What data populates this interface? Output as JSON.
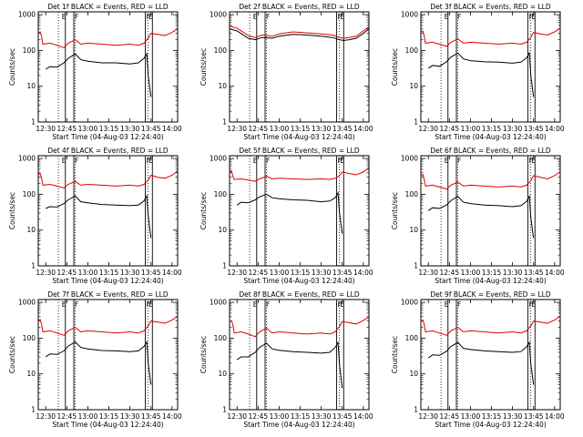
{
  "figure": {
    "panel_title_suffix": "BLACK = Events, RED = LLD",
    "xlabel": "Start Time (04-Aug-03 12:24:40)",
    "ylabel": "Counts/sec",
    "x_ticks": [
      "12:30",
      "12:45",
      "13:00",
      "13:15",
      "13:30",
      "13:45",
      "14:00"
    ],
    "y_ticks": [
      "1",
      "10",
      "100",
      "1000"
    ],
    "markers": [
      "E",
      "F",
      "F",
      "E"
    ],
    "colors": {
      "events": "#000000",
      "lld": "#dd0000"
    }
  },
  "chart_data": [
    {
      "type": "line",
      "title": "Det 1f BLACK = Events, RED = LLD",
      "xlabel": "Start Time (04-Aug-03 12:24:40)",
      "ylabel": "Counts/sec",
      "xlim": [
        "12:24:40",
        "14:04"
      ],
      "ylim": [
        1,
        1200
      ],
      "yscale": "log",
      "series": [
        {
          "name": "Events",
          "x": [
            "12:27",
            "12:30",
            "12:33",
            "12:38",
            "12:43",
            "12:46",
            "12:51",
            "12:55",
            "13:00",
            "13:10",
            "13:20",
            "13:30",
            "13:36",
            "13:40",
            "13:42",
            "13:43",
            "13:45"
          ],
          "values": [
            null,
            30,
            35,
            34,
            45,
            60,
            80,
            55,
            50,
            45,
            45,
            42,
            45,
            60,
            80,
            20,
            5
          ]
        },
        {
          "name": "LLD",
          "x": [
            "12:24:40",
            "12:26",
            "12:27",
            "12:28",
            "12:33",
            "12:38",
            "12:43",
            "12:46",
            "12:51",
            "12:55",
            "13:00",
            "13:10",
            "13:20",
            "13:30",
            "13:36",
            "13:40",
            "13:43",
            "13:45",
            "13:50",
            "13:55",
            "14:00",
            "14:04"
          ],
          "values": [
            300,
            330,
            250,
            150,
            160,
            140,
            120,
            160,
            200,
            150,
            160,
            150,
            140,
            150,
            140,
            160,
            220,
            300,
            280,
            260,
            320,
            400
          ]
        }
      ]
    },
    {
      "type": "line",
      "title": "Det 2f BLACK = Events, RED = LLD",
      "xlabel": "Start Time (04-Aug-03 12:24:40)",
      "ylabel": "Counts/sec",
      "xlim": [
        "12:24:40",
        "14:04"
      ],
      "ylim": [
        1,
        1200
      ],
      "yscale": "log",
      "series": [
        {
          "name": "Events",
          "x": [
            "12:24:40",
            "12:30",
            "12:38",
            "12:43",
            "12:48",
            "12:55",
            "13:00",
            "13:10",
            "13:20",
            "13:30",
            "13:38",
            "13:43",
            "13:46",
            "13:50",
            "13:55",
            "14:00",
            "14:04"
          ],
          "values": [
            400,
            350,
            220,
            200,
            230,
            220,
            250,
            280,
            270,
            250,
            230,
            200,
            190,
            200,
            220,
            300,
            400
          ]
        },
        {
          "name": "LLD",
          "x": [
            "12:24:40",
            "12:30",
            "12:38",
            "12:43",
            "12:48",
            "12:55",
            "13:00",
            "13:10",
            "13:20",
            "13:30",
            "13:38",
            "13:43",
            "13:46",
            "13:50",
            "13:55",
            "14:00",
            "14:04"
          ],
          "values": [
            480,
            420,
            260,
            230,
            270,
            250,
            290,
            330,
            310,
            290,
            270,
            230,
            220,
            230,
            250,
            350,
            460
          ]
        }
      ]
    },
    {
      "type": "line",
      "title": "Det 3f BLACK = Events, RED = LLD",
      "xlabel": "Start Time (04-Aug-03 12:24:40)",
      "ylabel": "Counts/sec",
      "xlim": [
        "12:24:40",
        "14:04"
      ],
      "ylim": [
        1,
        1200
      ],
      "yscale": "log",
      "series": [
        {
          "name": "Events",
          "x": [
            "12:27",
            "12:30",
            "12:33",
            "12:38",
            "12:43",
            "12:46",
            "12:51",
            "12:55",
            "13:00",
            "13:10",
            "13:20",
            "13:30",
            "13:36",
            "13:40",
            "13:42",
            "13:43",
            "13:45"
          ],
          "values": [
            null,
            32,
            38,
            36,
            48,
            65,
            85,
            58,
            52,
            48,
            47,
            44,
            47,
            62,
            85,
            20,
            5
          ]
        },
        {
          "name": "LLD",
          "x": [
            "12:24:40",
            "12:26",
            "12:27",
            "12:28",
            "12:33",
            "12:38",
            "12:43",
            "12:46",
            "12:51",
            "12:55",
            "13:00",
            "13:10",
            "13:20",
            "13:30",
            "13:36",
            "13:40",
            "13:43",
            "13:45",
            "13:50",
            "13:55",
            "14:00",
            "14:04"
          ],
          "values": [
            320,
            350,
            260,
            160,
            170,
            150,
            130,
            170,
            210,
            160,
            170,
            160,
            150,
            160,
            150,
            170,
            230,
            320,
            290,
            270,
            330,
            420
          ]
        }
      ]
    },
    {
      "type": "line",
      "title": "Det 4f BLACK = Events, RED = LLD",
      "xlabel": "Start Time (04-Aug-03 12:24:40)",
      "ylabel": "Counts/sec",
      "xlim": [
        "12:24:40",
        "14:04"
      ],
      "ylim": [
        1,
        1200
      ],
      "yscale": "log",
      "series": [
        {
          "name": "Events",
          "x": [
            "12:27",
            "12:30",
            "12:33",
            "12:38",
            "12:43",
            "12:46",
            "12:51",
            "12:55",
            "13:00",
            "13:10",
            "13:20",
            "13:30",
            "13:36",
            "13:40",
            "13:42",
            "13:43",
            "13:45"
          ],
          "values": [
            null,
            40,
            45,
            44,
            55,
            70,
            90,
            62,
            58,
            52,
            50,
            48,
            50,
            65,
            90,
            25,
            6
          ]
        },
        {
          "name": "LLD",
          "x": [
            "12:24:40",
            "12:26",
            "12:27",
            "12:28",
            "12:33",
            "12:38",
            "12:43",
            "12:46",
            "12:51",
            "12:55",
            "13:00",
            "13:10",
            "13:20",
            "13:30",
            "13:36",
            "13:40",
            "13:43",
            "13:45",
            "13:50",
            "13:55",
            "14:00",
            "14:04"
          ],
          "values": [
            350,
            380,
            280,
            180,
            190,
            170,
            150,
            190,
            230,
            180,
            190,
            180,
            170,
            180,
            170,
            190,
            250,
            340,
            300,
            280,
            340,
            450
          ]
        }
      ]
    },
    {
      "type": "line",
      "title": "Det 5f BLACK = Events, RED = LLD",
      "xlabel": "Start Time (04-Aug-03 12:24:40)",
      "ylabel": "Counts/sec",
      "xlim": [
        "12:24:40",
        "14:04"
      ],
      "ylim": [
        1,
        1200
      ],
      "yscale": "log",
      "series": [
        {
          "name": "Events",
          "x": [
            "12:27",
            "12:30",
            "12:33",
            "12:38",
            "12:43",
            "12:46",
            "12:51",
            "12:55",
            "13:00",
            "13:10",
            "13:20",
            "13:30",
            "13:36",
            "13:40",
            "13:42",
            "13:43",
            "13:45"
          ],
          "values": [
            null,
            50,
            60,
            58,
            70,
            85,
            100,
            80,
            75,
            70,
            68,
            62,
            65,
            80,
            110,
            30,
            8
          ]
        },
        {
          "name": "LLD",
          "x": [
            "12:24:40",
            "12:26",
            "12:27",
            "12:28",
            "12:33",
            "12:38",
            "12:43",
            "12:46",
            "12:51",
            "12:55",
            "13:00",
            "13:10",
            "13:20",
            "13:30",
            "13:36",
            "13:40",
            "13:43",
            "13:45",
            "13:50",
            "13:55",
            "14:00",
            "14:04"
          ],
          "values": [
            400,
            450,
            320,
            260,
            270,
            250,
            230,
            270,
            320,
            270,
            280,
            270,
            260,
            270,
            260,
            280,
            330,
            420,
            380,
            350,
            420,
            550
          ]
        }
      ]
    },
    {
      "type": "line",
      "title": "Det 6f BLACK = Events, RED = LLD",
      "xlabel": "Start Time (04-Aug-03 12:24:40)",
      "ylabel": "Counts/sec",
      "xlim": [
        "12:24:40",
        "14:04"
      ],
      "ylim": [
        1,
        1200
      ],
      "yscale": "log",
      "series": [
        {
          "name": "Events",
          "x": [
            "12:27",
            "12:30",
            "12:33",
            "12:38",
            "12:43",
            "12:46",
            "12:51",
            "12:55",
            "13:00",
            "13:10",
            "13:20",
            "13:30",
            "13:36",
            "13:40",
            "13:42",
            "13:43",
            "13:45"
          ],
          "values": [
            null,
            35,
            42,
            40,
            50,
            66,
            88,
            60,
            55,
            50,
            48,
            45,
            48,
            63,
            88,
            22,
            6
          ]
        },
        {
          "name": "LLD",
          "x": [
            "12:24:40",
            "12:26",
            "12:27",
            "12:28",
            "12:33",
            "12:38",
            "12:43",
            "12:46",
            "12:51",
            "12:55",
            "13:00",
            "13:10",
            "13:20",
            "13:30",
            "13:36",
            "13:40",
            "13:43",
            "13:45",
            "13:50",
            "13:55",
            "14:00",
            "14:04"
          ],
          "values": [
            330,
            360,
            270,
            170,
            180,
            160,
            140,
            180,
            220,
            170,
            180,
            170,
            160,
            170,
            160,
            180,
            240,
            330,
            300,
            270,
            330,
            430
          ]
        }
      ]
    },
    {
      "type": "line",
      "title": "Det 7f BLACK = Events, RED = LLD",
      "xlabel": "Start Time (04-Aug-03 12:24:40)",
      "ylabel": "Counts/sec",
      "xlim": [
        "12:24:40",
        "14:04"
      ],
      "ylim": [
        1,
        1200
      ],
      "yscale": "log",
      "series": [
        {
          "name": "Events",
          "x": [
            "12:27",
            "12:30",
            "12:33",
            "12:38",
            "12:43",
            "12:46",
            "12:51",
            "12:55",
            "13:00",
            "13:10",
            "13:20",
            "13:30",
            "13:36",
            "13:40",
            "13:42",
            "13:43",
            "13:45"
          ],
          "values": [
            null,
            30,
            36,
            35,
            44,
            60,
            78,
            55,
            50,
            45,
            44,
            42,
            44,
            58,
            78,
            20,
            5
          ]
        },
        {
          "name": "LLD",
          "x": [
            "12:24:40",
            "12:26",
            "12:27",
            "12:28",
            "12:33",
            "12:38",
            "12:43",
            "12:46",
            "12:51",
            "12:55",
            "13:00",
            "13:10",
            "13:20",
            "13:30",
            "13:36",
            "13:40",
            "13:43",
            "13:45",
            "13:50",
            "13:55",
            "14:00",
            "14:04"
          ],
          "values": [
            300,
            330,
            250,
            150,
            160,
            140,
            120,
            160,
            200,
            150,
            160,
            150,
            140,
            150,
            140,
            160,
            220,
            300,
            280,
            260,
            320,
            400
          ]
        }
      ]
    },
    {
      "type": "line",
      "title": "Det 8f BLACK = Events, RED = LLD",
      "xlabel": "Start Time (04-Aug-03 12:24:40)",
      "ylabel": "Counts/sec",
      "xlim": [
        "12:24:40",
        "14:04"
      ],
      "ylim": [
        1,
        1200
      ],
      "yscale": "log",
      "series": [
        {
          "name": "Events",
          "x": [
            "12:27",
            "12:30",
            "12:33",
            "12:38",
            "12:43",
            "12:46",
            "12:51",
            "12:55",
            "13:00",
            "13:10",
            "13:20",
            "13:30",
            "13:36",
            "13:40",
            "13:42",
            "13:43",
            "13:45"
          ],
          "values": [
            null,
            25,
            30,
            30,
            40,
            55,
            72,
            50,
            46,
            42,
            40,
            38,
            40,
            55,
            75,
            18,
            4
          ]
        },
        {
          "name": "LLD",
          "x": [
            "12:24:40",
            "12:26",
            "12:27",
            "12:28",
            "12:33",
            "12:38",
            "12:43",
            "12:46",
            "12:51",
            "12:55",
            "13:00",
            "13:10",
            "13:20",
            "13:30",
            "13:36",
            "13:40",
            "13:43",
            "13:45",
            "13:50",
            "13:55",
            "14:00",
            "14:04"
          ],
          "values": [
            280,
            310,
            240,
            140,
            150,
            130,
            110,
            150,
            190,
            140,
            150,
            140,
            130,
            140,
            130,
            150,
            210,
            290,
            270,
            250,
            310,
            390
          ]
        }
      ]
    },
    {
      "type": "line",
      "title": "Det 9f BLACK = Events, RED = LLD",
      "xlabel": "Start Time (04-Aug-03 12:24:40)",
      "ylabel": "Counts/sec",
      "xlim": [
        "12:24:40",
        "14:04"
      ],
      "ylim": [
        1,
        1200
      ],
      "yscale": "log",
      "series": [
        {
          "name": "Events",
          "x": [
            "12:27",
            "12:30",
            "12:33",
            "12:38",
            "12:43",
            "12:46",
            "12:51",
            "12:55",
            "13:00",
            "13:10",
            "13:20",
            "13:30",
            "13:36",
            "13:40",
            "13:42",
            "13:43",
            "13:45"
          ],
          "values": [
            null,
            28,
            34,
            33,
            43,
            58,
            76,
            52,
            48,
            44,
            42,
            40,
            42,
            57,
            76,
            19,
            5
          ]
        },
        {
          "name": "LLD",
          "x": [
            "12:24:40",
            "12:26",
            "12:27",
            "12:28",
            "12:33",
            "12:38",
            "12:43",
            "12:46",
            "12:51",
            "12:55",
            "13:00",
            "13:10",
            "13:20",
            "13:30",
            "13:36",
            "13:40",
            "13:43",
            "13:45",
            "13:50",
            "13:55",
            "14:00",
            "14:04"
          ],
          "values": [
            290,
            320,
            250,
            150,
            160,
            140,
            120,
            160,
            200,
            150,
            160,
            150,
            140,
            150,
            140,
            160,
            220,
            300,
            280,
            260,
            320,
            410
          ]
        }
      ]
    }
  ]
}
